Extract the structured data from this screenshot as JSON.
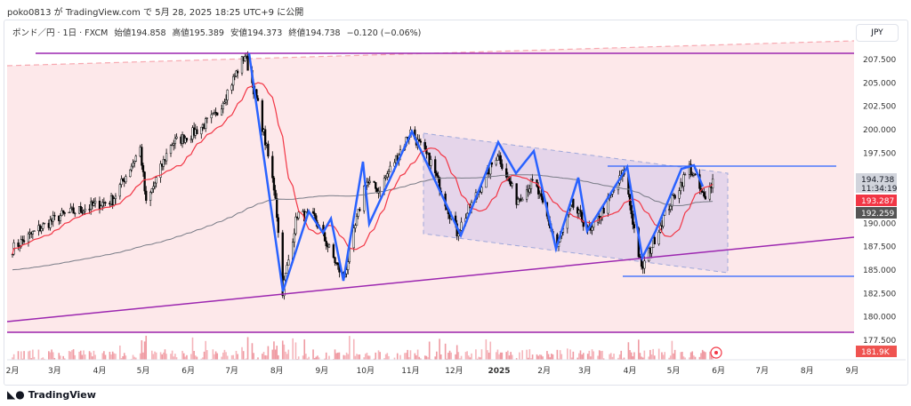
{
  "publish_line": "poko0813 が TradingView.com で 5月 28, 2025 18:25 UTC+9 に公開",
  "legend": {
    "symbol": "ポンド／円 · 1日 · FXCM",
    "open": "始値194.858",
    "high": "高値195.389",
    "low": "安値194.373",
    "close": "終値194.738",
    "change": "−0.120 (−0.06%)"
  },
  "currency_button": "JPY",
  "brand": "TradingView",
  "colors": {
    "up": "#ffffff",
    "down": "#000000",
    "ma_fast": "#f23645",
    "ma_slow": "#787b86",
    "zigzag": "#2962ff",
    "lines": "#9c27b0",
    "background_zone": "#fde8ea",
    "channel": "#d1c4e9"
  },
  "chart_data": {
    "type": "candlestick",
    "symbol": "GBPJPY",
    "interval": "1D",
    "ylim": [
      176,
      209.5
    ],
    "y_ticks": [
      "207.500",
      "205.000",
      "202.500",
      "200.000",
      "197.500",
      "190.000",
      "187.500",
      "185.000",
      "182.500",
      "180.000",
      "177.500"
    ],
    "x_ticks": [
      "2月",
      "3月",
      "4月",
      "5月",
      "6月",
      "7月",
      "8月",
      "9月",
      "10月",
      "11月",
      "12月",
      "2025",
      "2月",
      "3月",
      "4月",
      "5月",
      "6月",
      "7月",
      "8月",
      "9月"
    ],
    "price_path": [
      [
        "2024-02-01",
        187.3
      ],
      [
        "2024-02-20",
        189.5
      ],
      [
        "2024-03-05",
        190.8
      ],
      [
        "2024-03-20",
        191.5
      ],
      [
        "2024-04-10",
        192.5
      ],
      [
        "2024-04-29",
        198.0
      ],
      [
        "2024-05-03",
        192.0
      ],
      [
        "2024-05-20",
        198.5
      ],
      [
        "2024-06-03",
        199.5
      ],
      [
        "2024-06-20",
        201.5
      ],
      [
        "2024-07-10",
        208.0
      ],
      [
        "2024-07-20",
        202.0
      ],
      [
        "2024-07-31",
        193.0
      ],
      [
        "2024-08-05",
        182.8
      ],
      [
        "2024-08-15",
        191.0
      ],
      [
        "2024-08-27",
        190.5
      ],
      [
        "2024-09-16",
        184.0
      ],
      [
        "2024-10-01",
        194.5
      ],
      [
        "2024-10-10",
        193.5
      ],
      [
        "2024-11-01",
        199.8
      ],
      [
        "2024-11-15",
        196.5
      ],
      [
        "2024-12-03",
        189.0
      ],
      [
        "2024-12-31",
        197.5
      ],
      [
        "2025-01-13",
        192.5
      ],
      [
        "2025-01-25",
        194.5
      ],
      [
        "2025-02-10",
        187.5
      ],
      [
        "2025-02-20",
        192.0
      ],
      [
        "2025-03-05",
        189.0
      ],
      [
        "2025-03-28",
        195.5
      ],
      [
        "2025-04-09",
        185.0
      ],
      [
        "2025-04-25",
        191.0
      ],
      [
        "2025-05-12",
        196.0
      ],
      [
        "2025-05-23",
        192.3
      ],
      [
        "2025-05-28",
        194.738
      ]
    ],
    "last_price": "194.738",
    "countdown": "11:34:19",
    "ma_fast_label": "193.287",
    "ma_slow_label": "192.259",
    "volume_label": "181.9K"
  }
}
